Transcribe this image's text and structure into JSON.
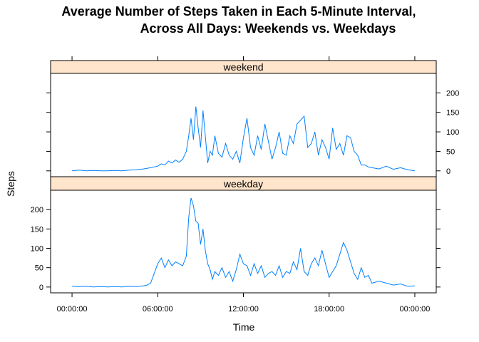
{
  "chart_data": {
    "type": "line",
    "title_line1": "Average Number of Steps Taken in Each 5-Minute Interval,",
    "title_line2": "Across All Days: Weekends vs. Weekdays",
    "xlabel": "Time",
    "ylabel": "Steps",
    "x_ticks": [
      "00:00:00",
      "06:00:00",
      "12:00:00",
      "18:00:00",
      "00:00:00"
    ],
    "x_tick_hours": [
      0,
      6,
      12,
      18,
      24
    ],
    "xlim_hours": [
      -1.5,
      25.5
    ],
    "ylim": [
      -15,
      250
    ],
    "y_ticks": [
      0,
      50,
      100,
      150,
      200
    ],
    "y_ticks_bottom": [
      0,
      50,
      100,
      150,
      200
    ],
    "line_color": "#0080ff",
    "strip_color": "#ffe5cc",
    "panels": [
      {
        "name": "weekend",
        "x_hours": [
          0,
          0.5,
          1,
          1.5,
          2,
          2.5,
          3,
          3.5,
          4,
          4.5,
          5,
          5.5,
          6,
          6.25,
          6.5,
          6.75,
          7,
          7.25,
          7.5,
          7.75,
          8,
          8.17,
          8.33,
          8.5,
          8.67,
          8.83,
          9,
          9.17,
          9.33,
          9.5,
          9.67,
          9.83,
          10,
          10.25,
          10.5,
          10.75,
          11,
          11.25,
          11.5,
          11.75,
          12,
          12.25,
          12.5,
          12.75,
          13,
          13.25,
          13.5,
          13.75,
          14,
          14.25,
          14.5,
          14.75,
          15,
          15.25,
          15.5,
          15.75,
          16,
          16.25,
          16.5,
          16.75,
          17,
          17.25,
          17.5,
          17.75,
          18,
          18.25,
          18.5,
          18.75,
          19,
          19.25,
          19.5,
          19.75,
          20,
          20.25,
          20.5,
          20.75,
          21,
          21.5,
          22,
          22.5,
          23,
          23.5,
          24
        ],
        "y": [
          0,
          2,
          0,
          1,
          0,
          0,
          1,
          0,
          2,
          3,
          5,
          8,
          12,
          18,
          15,
          25,
          20,
          28,
          22,
          30,
          50,
          90,
          135,
          80,
          165,
          110,
          60,
          155,
          90,
          20,
          50,
          40,
          90,
          45,
          35,
          70,
          40,
          30,
          50,
          20,
          85,
          135,
          60,
          40,
          90,
          55,
          120,
          75,
          30,
          60,
          100,
          45,
          40,
          90,
          70,
          120,
          130,
          140,
          60,
          70,
          100,
          40,
          80,
          60,
          30,
          110,
          55,
          70,
          40,
          90,
          85,
          50,
          40,
          15,
          15,
          10,
          8,
          5,
          12,
          4,
          8,
          3,
          0
        ]
      },
      {
        "name": "weekday",
        "x_hours": [
          0,
          0.5,
          1,
          1.5,
          2,
          2.5,
          3,
          3.5,
          4,
          4.5,
          5,
          5.25,
          5.5,
          5.75,
          6,
          6.25,
          6.5,
          6.75,
          7,
          7.25,
          7.5,
          7.75,
          8,
          8.17,
          8.33,
          8.5,
          8.67,
          8.83,
          9,
          9.17,
          9.33,
          9.5,
          9.67,
          9.83,
          10,
          10.25,
          10.5,
          10.75,
          11,
          11.25,
          11.5,
          11.75,
          12,
          12.25,
          12.5,
          12.75,
          13,
          13.25,
          13.5,
          13.75,
          14,
          14.25,
          14.5,
          14.75,
          15,
          15.25,
          15.5,
          15.75,
          16,
          16.25,
          16.5,
          16.75,
          17,
          17.25,
          17.5,
          17.75,
          18,
          18.25,
          18.5,
          18.75,
          19,
          19.25,
          19.5,
          19.75,
          20,
          20.25,
          20.5,
          20.75,
          21,
          21.5,
          22,
          22.5,
          23,
          23.5,
          24
        ],
        "y": [
          2,
          1,
          2,
          0,
          1,
          0,
          1,
          0,
          2,
          1,
          3,
          5,
          10,
          35,
          60,
          75,
          50,
          70,
          55,
          65,
          60,
          55,
          80,
          180,
          230,
          210,
          170,
          165,
          110,
          150,
          95,
          60,
          45,
          20,
          40,
          30,
          50,
          25,
          40,
          15,
          45,
          85,
          60,
          55,
          30,
          60,
          35,
          55,
          25,
          35,
          40,
          30,
          55,
          25,
          40,
          35,
          65,
          45,
          100,
          40,
          30,
          60,
          75,
          55,
          95,
          60,
          25,
          40,
          55,
          85,
          115,
          95,
          65,
          35,
          20,
          50,
          25,
          30,
          10,
          15,
          10,
          5,
          8,
          2,
          3
        ]
      }
    ]
  }
}
